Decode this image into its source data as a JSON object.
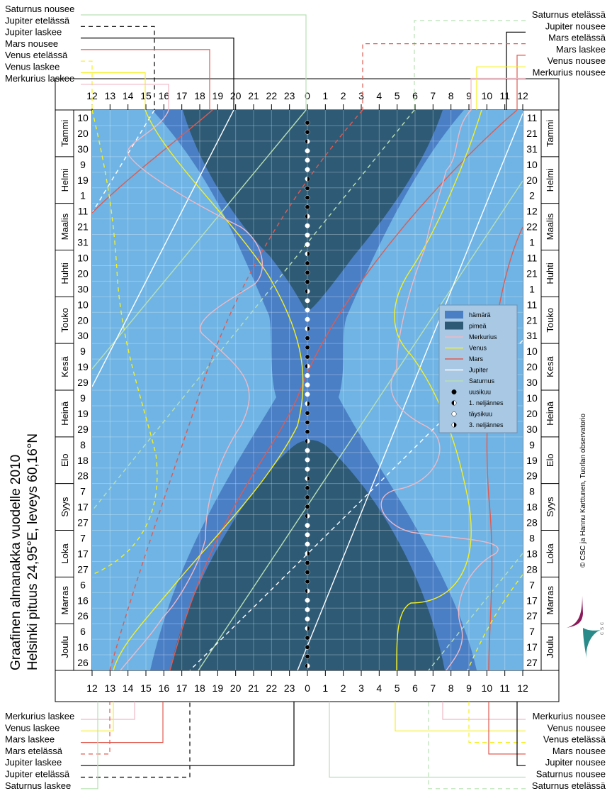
{
  "title_line1": "Graafinen almanakka vuodelle 2010",
  "title_line2": "Helsinki  pituus 24,95°E,  leveys 60,16°N",
  "credit": "© CSC ja Hannu Karttunen, Tuorlan observatorio",
  "logo_text": "csc",
  "colors": {
    "day": "#6fb4e4",
    "twilight": "#4a7fc5",
    "dark": "#2e5a75",
    "Merkurius": "#f0b8c4",
    "Venus": "#f5f020",
    "Mars": "#e05a50",
    "Jupiter": "#ffffff",
    "Saturnus": "#b8e0b4"
  },
  "top_left_labels": [
    "Saturnus nousee",
    "Jupiter etelässä",
    "Jupiter laskee",
    "Mars nousee",
    "Venus etelässä",
    "Venus laskee",
    "Merkurius laskee"
  ],
  "top_right_labels": [
    "Saturnus etelässä",
    "Jupiter nousee",
    "Mars etelässä",
    "Mars laskee",
    "Venus nousee",
    "Merkurius nousee"
  ],
  "bottom_left_labels": [
    "Merkurius laskee",
    "Venus laskee",
    "Mars laskee",
    "Mars etelässä",
    "Jupiter laskee",
    "Jupiter etelässä",
    "Saturnus laskee"
  ],
  "bottom_right_labels": [
    "Merkurius nousee",
    "Venus nousee",
    "Venus etelässä",
    "Mars nousee",
    "Jupiter nousee",
    "Saturnus nousee",
    "Saturnus etelässä"
  ],
  "chart_data": {
    "type": "line",
    "x_axis_hours": [
      "12",
      "13",
      "14",
      "15",
      "16",
      "17",
      "18",
      "19",
      "20",
      "21",
      "22",
      "23",
      "0",
      "1",
      "2",
      "3",
      "4",
      "5",
      "6",
      "7",
      "8",
      "9",
      "10",
      "11",
      "12"
    ],
    "months": [
      "Tammi",
      "Helmi",
      "Maalis",
      "Huhti",
      "Touko",
      "Kesä",
      "Heinä",
      "Elo",
      "Syys",
      "Loka",
      "Marras",
      "Joulu"
    ],
    "left_days": [
      "10",
      "20",
      "30",
      "9",
      "19",
      "1",
      "11",
      "21",
      "31",
      "10",
      "20",
      "30",
      "10",
      "20",
      "30",
      "9",
      "19",
      "29",
      "9",
      "19",
      "29",
      "8",
      "18",
      "28",
      "7",
      "17",
      "27",
      "7",
      "17",
      "27",
      "6",
      "16",
      "26",
      "6",
      "16",
      "26"
    ],
    "right_days": [
      "11",
      "21",
      "31",
      "10",
      "20",
      "2",
      "12",
      "22",
      "1",
      "11",
      "21",
      "1",
      "11",
      "21",
      "31",
      "10",
      "20",
      "30",
      "10",
      "20",
      "30",
      "9",
      "19",
      "29",
      "8",
      "18",
      "28",
      "8",
      "18",
      "28",
      "7",
      "17",
      "27",
      "7",
      "17",
      "27"
    ],
    "legend": [
      "hämärä",
      "pimeä",
      "Merkurius",
      "Venus",
      "Mars",
      "Jupiter",
      "Saturnus",
      "uusikuu",
      "1. neljännes",
      "täysikuu",
      "3. neljännes"
    ]
  }
}
